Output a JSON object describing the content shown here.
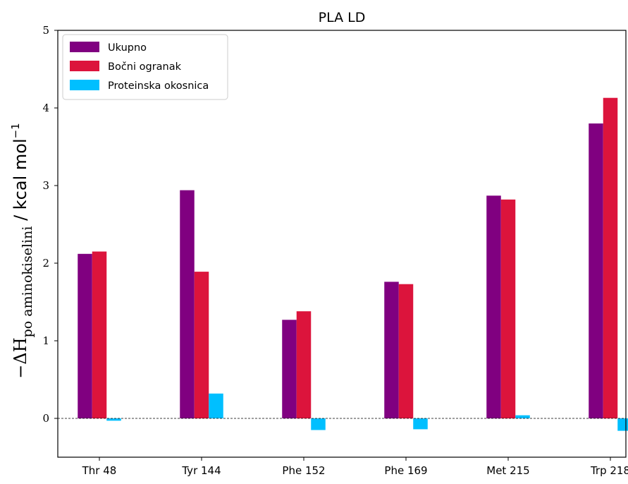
{
  "chart_data": {
    "type": "bar",
    "title": "PLA LD",
    "xlabel": "",
    "ylabel": {
      "prefix": "−ΔH",
      "subscript": "po aminokiselini",
      "unit": " / kcal mol",
      "unit_exponent": "−1"
    },
    "categories": [
      "Thr 48",
      "Tyr 144",
      "Phe 152",
      "Phe 169",
      "Met 215",
      "Trp 218"
    ],
    "series": [
      {
        "name": "Ukupno",
        "color": "#800080",
        "values": [
          2.12,
          2.94,
          1.27,
          1.76,
          2.87,
          3.8
        ]
      },
      {
        "name": "Bočni ogranak",
        "color": "#dc143c",
        "values": [
          2.15,
          1.89,
          1.38,
          1.73,
          2.82,
          4.13
        ]
      },
      {
        "name": "Proteinska okosnica",
        "color": "#00bfff",
        "values": [
          -0.03,
          0.32,
          -0.15,
          -0.14,
          0.04,
          -0.16
        ]
      }
    ],
    "ylim": [
      -0.5,
      5
    ],
    "yticks": [
      "0",
      "1",
      "2",
      "3",
      "4",
      "5"
    ],
    "grid": false,
    "legend_position": "top-left",
    "zero_line": "dashed"
  }
}
